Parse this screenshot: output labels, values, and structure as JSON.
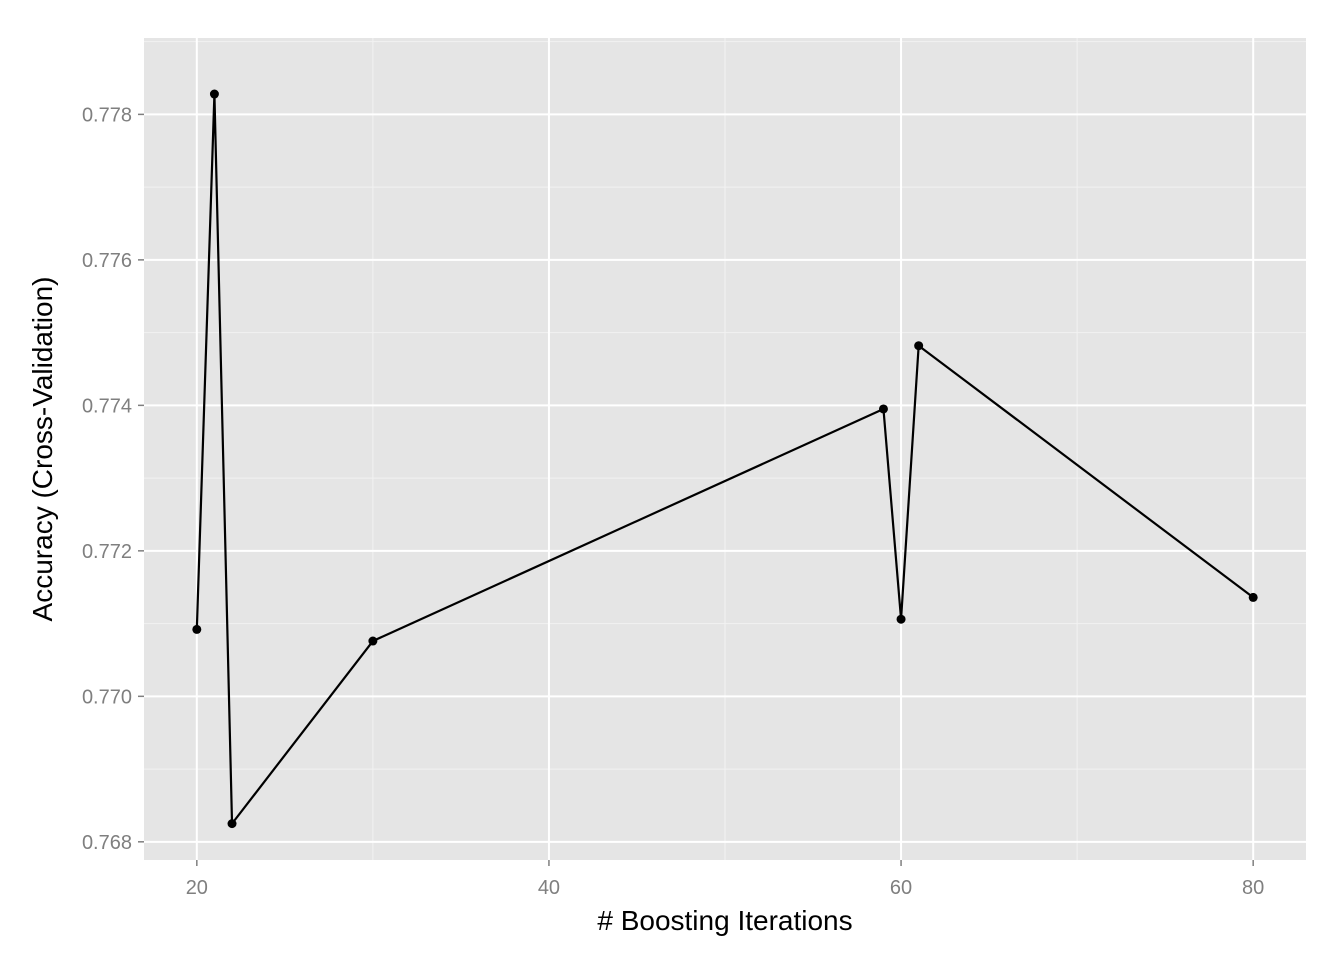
{
  "chart_data": {
    "type": "line",
    "title": "",
    "xlabel": "# Boosting Iterations",
    "ylabel": "Accuracy (Cross-Validation)",
    "xlim": [
      17,
      83
    ],
    "ylim": [
      0.76775,
      0.77905
    ],
    "x_ticks": [
      20,
      40,
      60,
      80
    ],
    "y_ticks": [
      0.768,
      0.77,
      0.772,
      0.774,
      0.776,
      0.778
    ],
    "x_tick_labels": [
      "20",
      "40",
      "60",
      "80"
    ],
    "y_tick_labels": [
      "0.768",
      "0.770",
      "0.772",
      "0.774",
      "0.776",
      "0.778"
    ],
    "grid": true,
    "series": [
      {
        "x": [
          20,
          21,
          22,
          30,
          59,
          60,
          61,
          80
        ],
        "y": [
          0.77092,
          0.77828,
          0.76825,
          0.77076,
          0.77395,
          0.77106,
          0.77482,
          0.77136
        ]
      }
    ],
    "colors": {
      "panel": "#e5e5e5",
      "grid_major": "#ffffff",
      "grid_minor": "#f2f2f2",
      "line": "#000000",
      "tick_text": "#7f7f7f"
    }
  }
}
